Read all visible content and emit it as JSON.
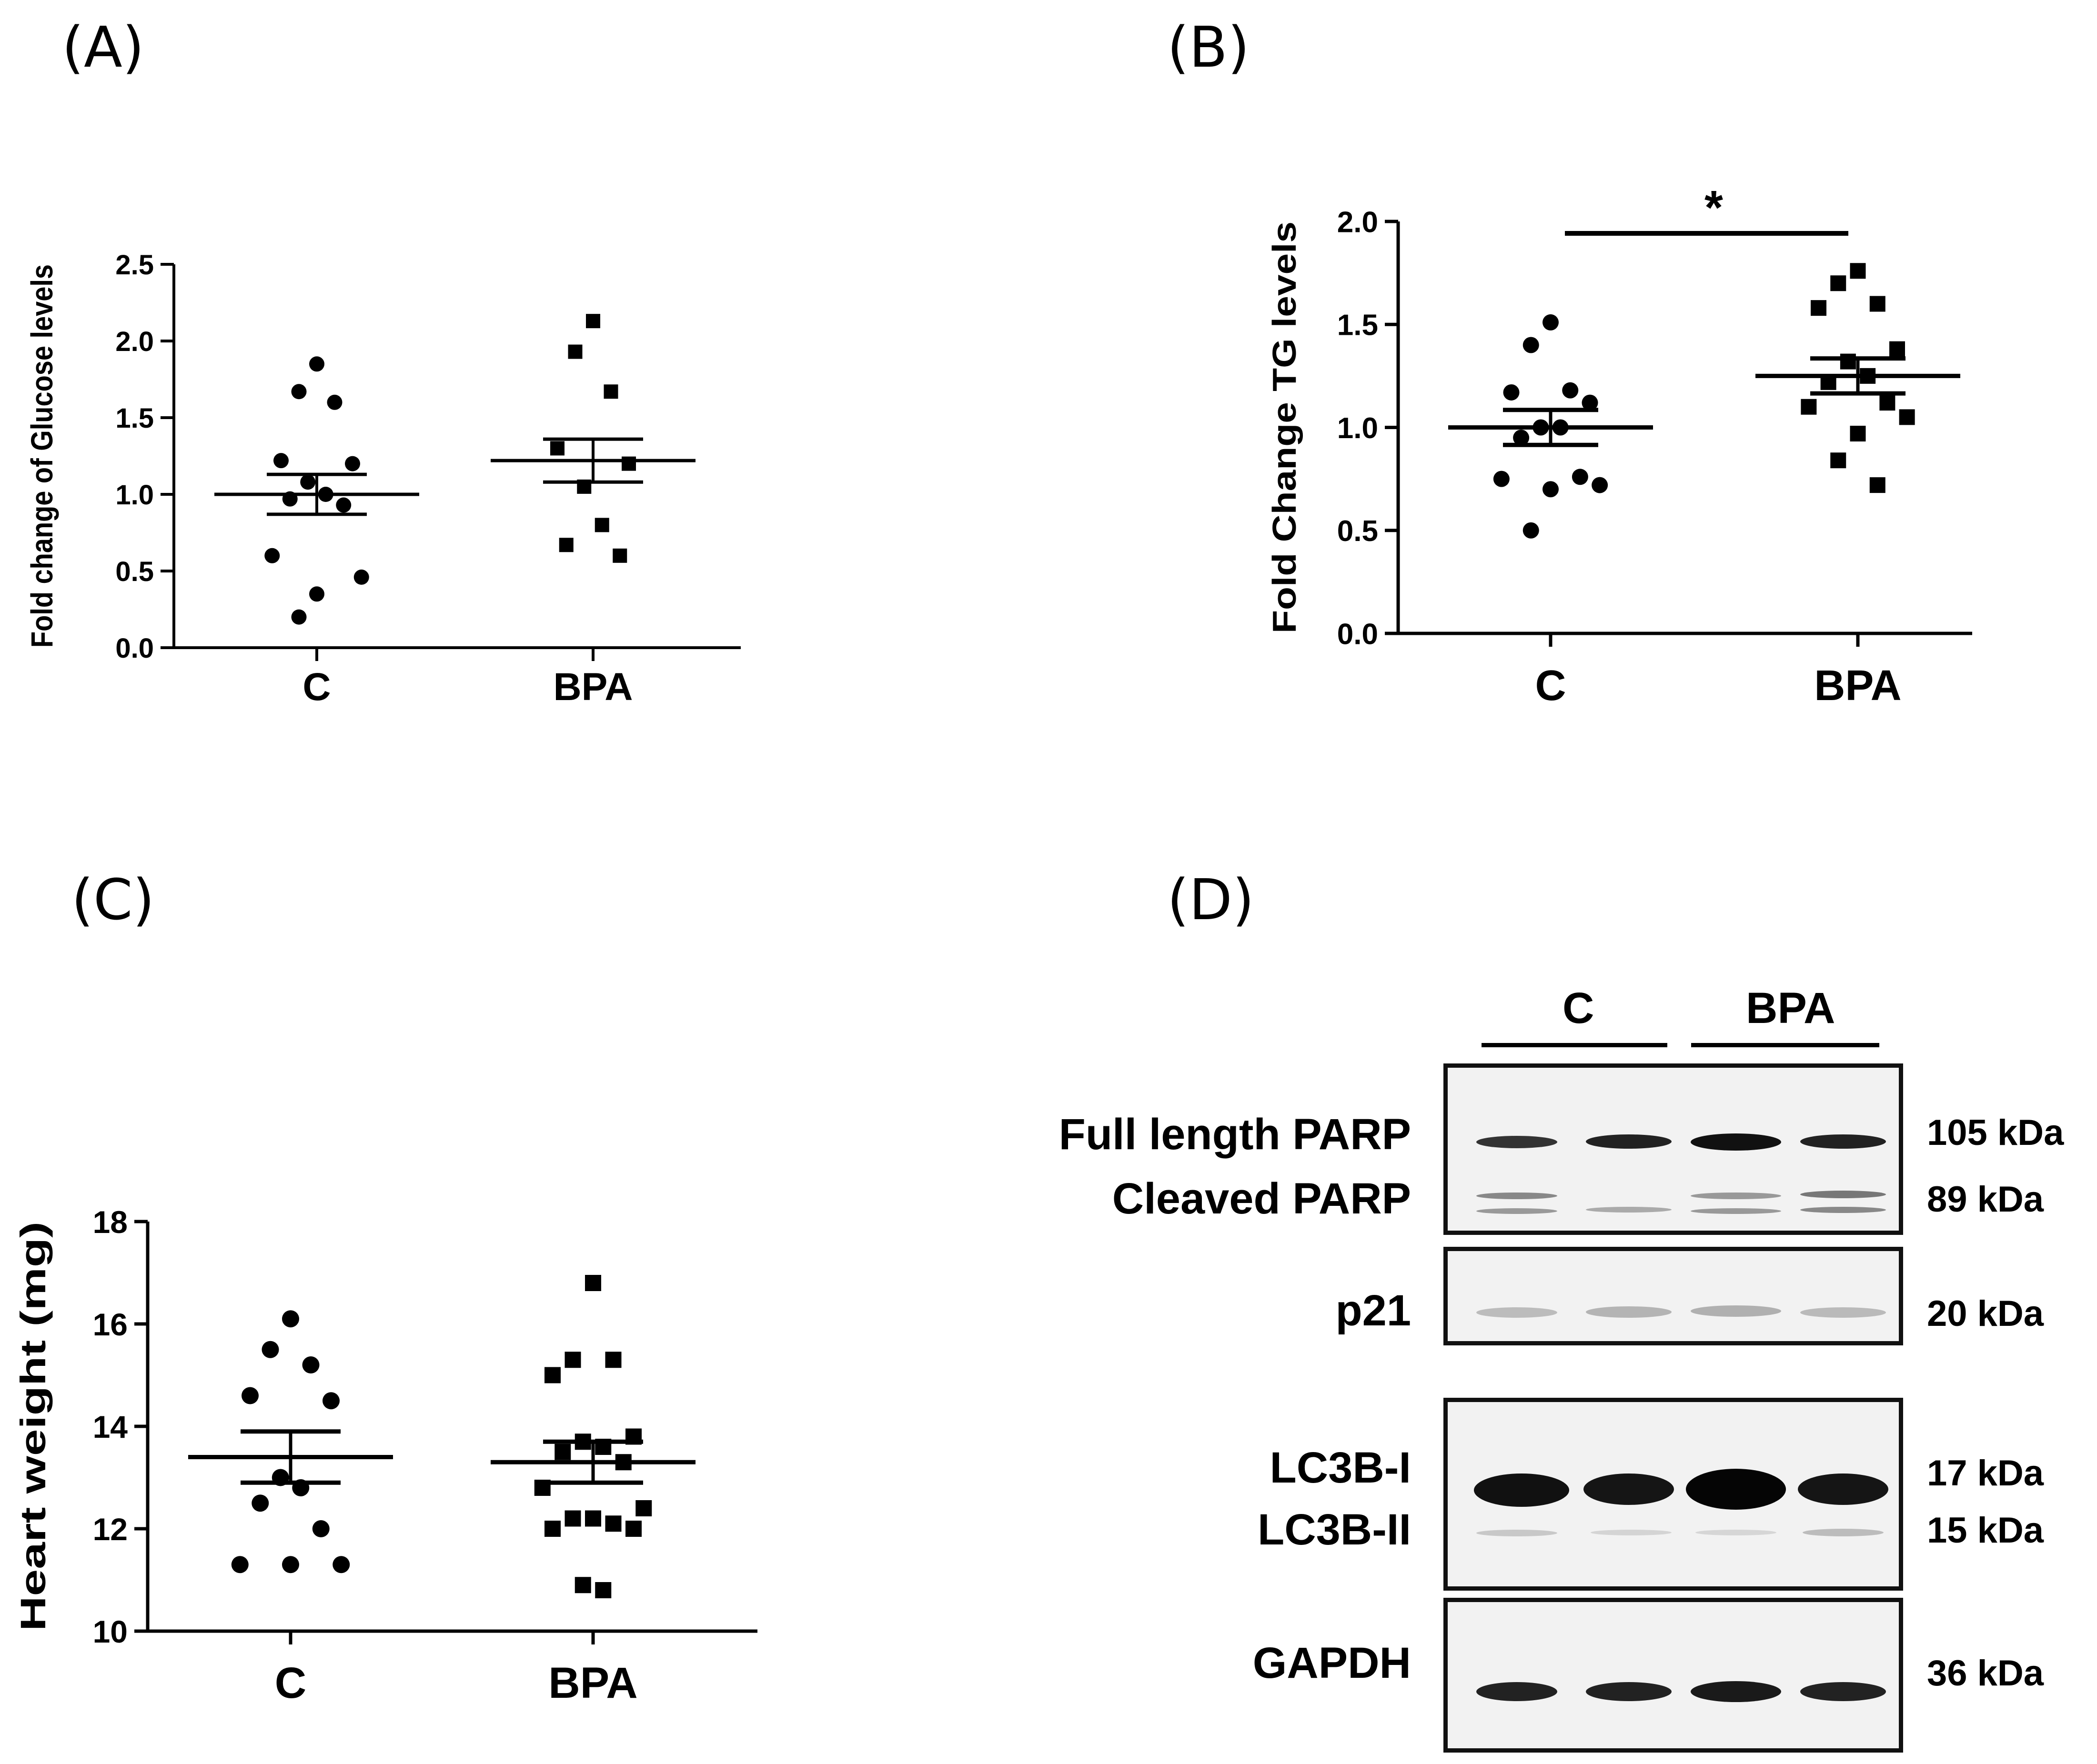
{
  "panels": {
    "A": {
      "label": "(A)"
    },
    "B": {
      "label": "(B)"
    },
    "C": {
      "label": "(C)"
    },
    "D": {
      "label": "(D)"
    }
  },
  "chart_data": [
    {
      "id": "A",
      "type": "scatter",
      "ylabel": "Fold change of Glucose levels",
      "ylim": [
        0,
        2.5
      ],
      "yticks": [
        "0.0",
        "0.5",
        "1.0",
        "1.5",
        "2.0",
        "2.5"
      ],
      "categories": [
        "C",
        "BPA"
      ],
      "series": [
        {
          "name": "C",
          "marker": "circle",
          "mean": 1.0,
          "sem": 0.13,
          "values": [
            1.85,
            1.67,
            1.6,
            1.22,
            1.2,
            1.08,
            1.0,
            0.97,
            0.93,
            0.6,
            0.46,
            0.35,
            0.2
          ]
        },
        {
          "name": "BPA",
          "marker": "square",
          "mean": 1.22,
          "sem": 0.14,
          "values": [
            2.13,
            1.93,
            1.67,
            1.3,
            1.2,
            1.05,
            0.8,
            0.67,
            0.6
          ]
        }
      ],
      "significance": ""
    },
    {
      "id": "B",
      "type": "scatter",
      "ylabel": "Fold Change TG levels",
      "ylim": [
        0,
        2.0
      ],
      "yticks": [
        "0.0",
        "0.5",
        "1.0",
        "1.5",
        "2.0"
      ],
      "categories": [
        "C",
        "BPA"
      ],
      "series": [
        {
          "name": "C",
          "marker": "circle",
          "mean": 1.0,
          "sem": 0.085,
          "values": [
            1.51,
            1.4,
            1.18,
            1.17,
            1.12,
            1.0,
            1.0,
            0.95,
            0.76,
            0.75,
            0.72,
            0.7,
            0.5
          ]
        },
        {
          "name": "BPA",
          "marker": "square",
          "mean": 1.25,
          "sem": 0.085,
          "values": [
            1.76,
            1.7,
            1.6,
            1.58,
            1.38,
            1.32,
            1.25,
            1.22,
            1.12,
            1.1,
            1.05,
            0.97,
            0.84,
            0.72
          ]
        }
      ],
      "significance": "*"
    },
    {
      "id": "C",
      "type": "scatter",
      "ylabel": "Heart weight (mg)",
      "ylim": [
        10,
        18
      ],
      "yticks": [
        "10",
        "12",
        "14",
        "16",
        "18"
      ],
      "categories": [
        "C",
        "BPA"
      ],
      "series": [
        {
          "name": "C",
          "marker": "circle",
          "mean": 13.4,
          "sem": 0.5,
          "values": [
            16.1,
            15.5,
            15.2,
            14.6,
            14.5,
            13.0,
            12.8,
            12.5,
            12.0,
            11.3,
            11.3,
            11.3
          ]
        },
        {
          "name": "BPA",
          "marker": "square",
          "mean": 13.3,
          "sem": 0.4,
          "values": [
            16.8,
            15.3,
            15.3,
            15.0,
            13.8,
            13.7,
            13.6,
            13.5,
            13.3,
            12.8,
            12.4,
            12.2,
            12.2,
            12.1,
            12.0,
            12.0,
            10.9,
            10.8
          ]
        }
      ],
      "significance": ""
    }
  ],
  "western_blot": {
    "lane_groups": [
      "C",
      "BPA"
    ],
    "blots": [
      {
        "name": "PARP",
        "labels": [
          "Full length PARP",
          "Cleaved PARP"
        ],
        "kda": [
          "105 kDa",
          "89 kDa"
        ]
      },
      {
        "name": "p21",
        "labels": [
          "p21"
        ],
        "kda": [
          "20 kDa"
        ]
      },
      {
        "name": "LC3B",
        "labels": [
          "LC3B-I",
          "LC3B-II"
        ],
        "kda": [
          "17 kDa",
          "15 kDa"
        ]
      },
      {
        "name": "GAPDH",
        "labels": [
          "GAPDH"
        ],
        "kda": [
          "36 kDa"
        ]
      }
    ]
  }
}
